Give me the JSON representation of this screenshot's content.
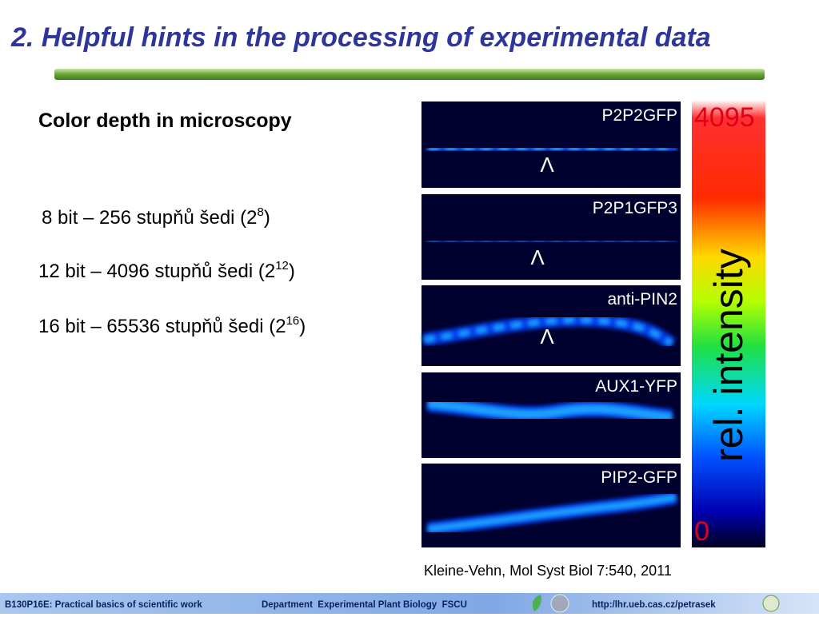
{
  "header": {
    "title": "2. Helpful hints in the processing of experimental data"
  },
  "subtitle": "Color depth in microscopy",
  "bullets": [
    {
      "text": "8 bit – 256 stupňů šedi (2",
      "sup": "8",
      "close": ")"
    },
    {
      "text": "12 bit – 4096 stupňů šedi (2",
      "sup": "12",
      "close": ")"
    },
    {
      "text": "16 bit – 65536 stupňů šedi (2",
      "sup": "16",
      "close": ")"
    }
  ],
  "figure": {
    "panels": [
      {
        "label": "P2P2GFP",
        "marker": "Λ"
      },
      {
        "label": "P2P1GFP3",
        "marker": "Λ"
      },
      {
        "label": "anti-PIN2",
        "marker": "Λ"
      },
      {
        "label": "AUX1-YFP"
      },
      {
        "label": "PIP2-GFP"
      }
    ],
    "scale": {
      "max": "4095",
      "label": "rel. intensity",
      "min": "0"
    },
    "citation": "Kleine-Vehn, Mol Syst Biol 7:540, 2011"
  },
  "footer": {
    "course": "B130P16E: Practical basics of scientific work",
    "department": "Department  Experimental Plant Biology  FSCU",
    "url": "http:/lhr.ueb.cas.cz/petrasek"
  }
}
